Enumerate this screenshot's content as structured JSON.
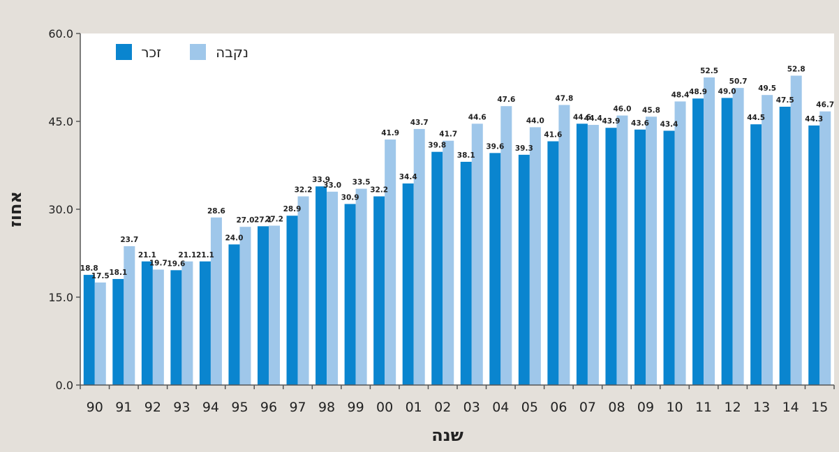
{
  "chart_data": {
    "type": "bar",
    "xlabel": "שנה",
    "ylabel": "אחוז",
    "ylim": [
      0,
      60
    ],
    "yticks": [
      "0.0",
      "15.0",
      "30.0",
      "45.0",
      "60.0"
    ],
    "grid": false,
    "legend_position": "top-left",
    "categories": [
      "90",
      "91",
      "92",
      "93",
      "94",
      "95",
      "96",
      "97",
      "98",
      "99",
      "00",
      "01",
      "02",
      "03",
      "04",
      "05",
      "06",
      "07",
      "08",
      "09",
      "10",
      "11",
      "12",
      "13",
      "14",
      "15"
    ],
    "series": [
      {
        "name": "זכר",
        "color": "#0a85cf",
        "values": [
          18.8,
          18.1,
          21.1,
          19.6,
          21.1,
          24.0,
          27.1,
          28.9,
          33.9,
          30.9,
          32.2,
          34.4,
          39.8,
          38.1,
          39.6,
          39.3,
          41.6,
          44.6,
          43.9,
          43.6,
          43.4,
          48.9,
          49.0,
          44.5,
          47.5,
          44.3
        ],
        "labels": [
          "18.8",
          "18.1",
          "21.1",
          "19.6",
          "21.1",
          "24.0",
          "27.1",
          "28.9",
          "33.9",
          "30.9",
          "32.2",
          "34.4",
          "39.8",
          "38.1",
          "39.6",
          "39.3",
          "41.6",
          "44.6",
          "43.9",
          "43.6",
          "43.4",
          "48.9",
          "49.0",
          "44.5",
          "47.5",
          "44.3"
        ]
      },
      {
        "name": "נקבה",
        "color": "#9fc7ea",
        "values": [
          17.5,
          23.7,
          19.7,
          21.1,
          28.6,
          27.0,
          27.2,
          32.2,
          33.0,
          33.5,
          41.9,
          43.7,
          41.7,
          44.6,
          47.6,
          44.0,
          47.8,
          44.4,
          46.0,
          45.8,
          48.4,
          52.5,
          50.7,
          49.5,
          52.8,
          46.7
        ],
        "labels": [
          "17.5",
          "23.7",
          "19.7",
          "21.1",
          "28.6",
          "27.0",
          "27.2",
          "32.2",
          "33.0",
          "33.5",
          "41.9",
          "43.7",
          "41.7",
          "44.6",
          "47.6",
          "44.0",
          "47.8",
          "44.4",
          "46.0",
          "45.8",
          "48.4",
          "52.5",
          "50.7",
          "49.5",
          "52.8",
          "46.7"
        ]
      }
    ]
  }
}
